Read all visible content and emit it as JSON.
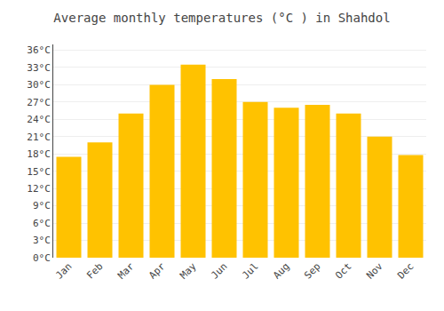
{
  "chart_data": {
    "type": "bar",
    "title": "Average monthly temperatures (°C ) in Shahdol",
    "categories": [
      "Jan",
      "Feb",
      "Mar",
      "Apr",
      "May",
      "Jun",
      "Jul",
      "Aug",
      "Sep",
      "Oct",
      "Nov",
      "Dec"
    ],
    "values": [
      17.5,
      20,
      25,
      30,
      33.5,
      31,
      27,
      26,
      26.5,
      25,
      21,
      17.8
    ],
    "color": "#FFC200",
    "ylim": [
      0,
      37
    ],
    "yticks": [
      {
        "value": 0,
        "label": "0°C"
      },
      {
        "value": 3,
        "label": "3°C"
      },
      {
        "value": 6,
        "label": "6°C"
      },
      {
        "value": 9,
        "label": "9°C"
      },
      {
        "value": 12,
        "label": "12°C"
      },
      {
        "value": 15,
        "label": "15°C"
      },
      {
        "value": 18,
        "label": "18°C"
      },
      {
        "value": 21,
        "label": "21°C"
      },
      {
        "value": 24,
        "label": "24°C"
      },
      {
        "value": 27,
        "label": "27°C"
      },
      {
        "value": 30,
        "label": "30°C"
      },
      {
        "value": 33,
        "label": "33°C"
      },
      {
        "value": 36,
        "label": "36°C"
      }
    ],
    "grid": true
  }
}
